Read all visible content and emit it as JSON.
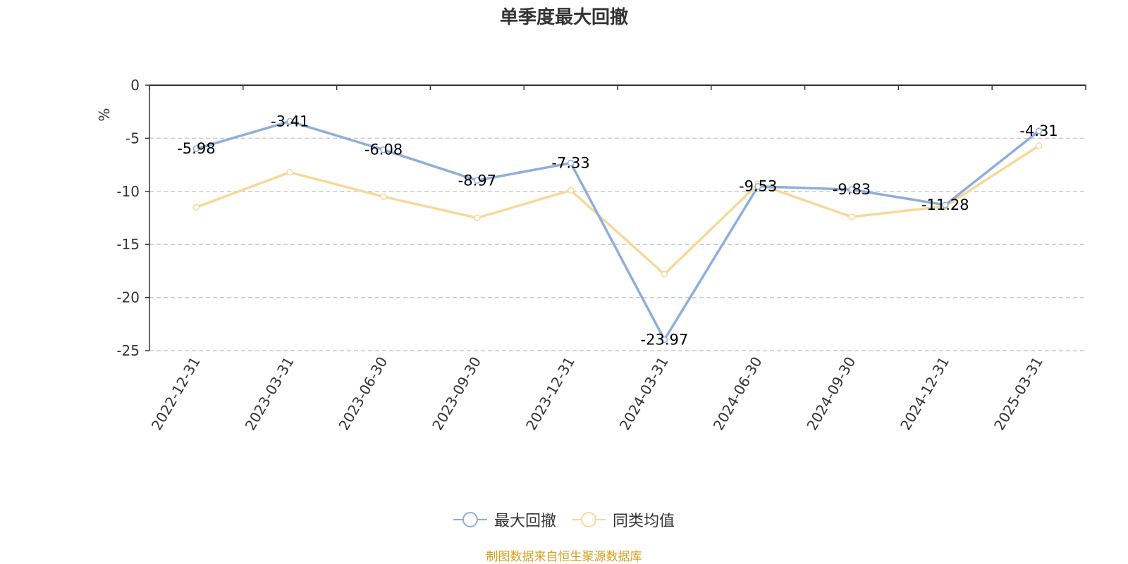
{
  "chart_data": {
    "type": "line",
    "title": "单季度最大回撤",
    "ylabel": "%",
    "categories": [
      "2022-12-31",
      "2023-03-31",
      "2023-06-30",
      "2023-09-30",
      "2023-12-31",
      "2024-03-31",
      "2024-06-30",
      "2024-09-30",
      "2024-12-31",
      "2025-03-31"
    ],
    "ylim": [
      -25,
      0
    ],
    "yticks": [
      0,
      -5,
      -10,
      -15,
      -20,
      -25
    ],
    "grid": true,
    "legend_position": "bottom",
    "series": [
      {
        "name": "最大回撤",
        "color": "#8eaedc",
        "values": [
          -5.98,
          -3.41,
          -6.08,
          -8.97,
          -7.33,
          -23.97,
          -9.53,
          -9.83,
          -11.28,
          -4.31
        ],
        "labels": [
          "-5.98",
          "-3.41",
          "-6.08",
          "-8.97",
          "-7.33",
          "-23.97",
          "-9.53",
          "-9.83",
          "-11.28",
          "-4.31"
        ]
      },
      {
        "name": "同类均值",
        "color": "#f8d898",
        "values": [
          -11.5,
          -8.2,
          -10.5,
          -12.5,
          -9.9,
          -17.8,
          -9.3,
          -12.4,
          -11.4,
          -5.7
        ]
      }
    ]
  },
  "legend": [
    "最大回撤",
    "同类均值"
  ],
  "source": {
    "text": "制图数据来自恒生聚源数据库",
    "color": "#d4a020"
  },
  "axis_color": "#333333",
  "ylabel_color": "#e02020",
  "grid_color": "#cccccc"
}
